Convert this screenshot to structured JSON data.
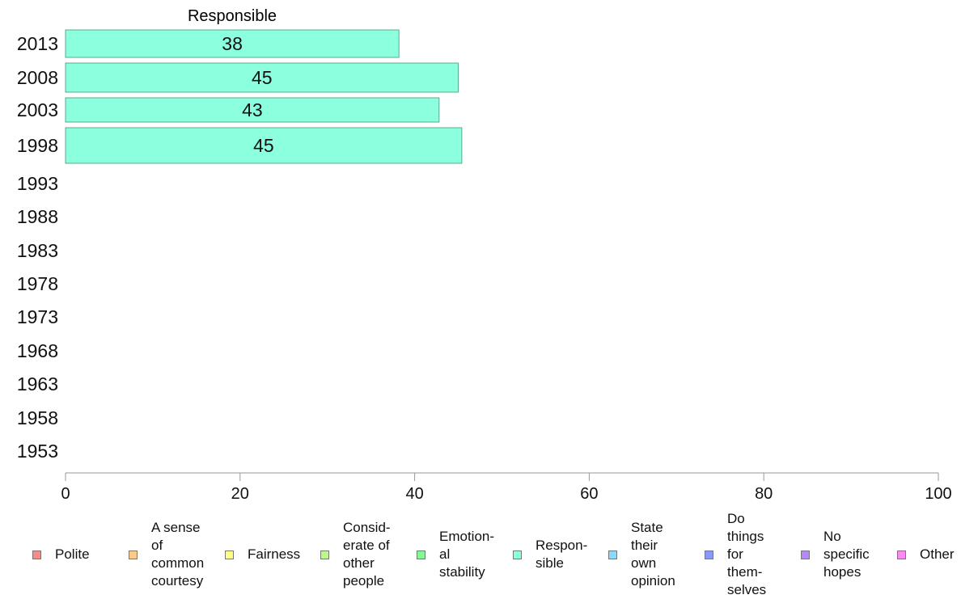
{
  "chart_data": {
    "type": "bar",
    "orientation": "horizontal",
    "title": "Responsible",
    "categories": [
      "2013",
      "2008",
      "2003",
      "1998",
      "1993",
      "1988",
      "1983",
      "1978",
      "1973",
      "1968",
      "1963",
      "1958",
      "1953"
    ],
    "series": [
      {
        "name": "Responsible",
        "color": "#8cffdf",
        "values": [
          38.2,
          45.0,
          42.8,
          45.4,
          null,
          null,
          null,
          null,
          null,
          null,
          null,
          null,
          null
        ]
      }
    ],
    "data_labels": [
      "38",
      "45",
      "43",
      "45",
      "",
      "",
      "",
      "",
      "",
      "",
      "",
      "",
      ""
    ],
    "xlim": [
      0,
      100
    ],
    "xticks": [
      "0",
      "20",
      "40",
      "60",
      "80",
      "100"
    ],
    "grid": false,
    "legend_position": "bottom"
  },
  "legend": {
    "items": [
      {
        "label": "Polite",
        "color": "#fa8a8a"
      },
      {
        "label": "A sense\nof\ncommon\ncourtesy",
        "color": "#fbc98a"
      },
      {
        "label": "Fairness",
        "color": "#fcfc8a"
      },
      {
        "label": "Consid-\nerate of\nother\npeople",
        "color": "#bafa88"
      },
      {
        "label": "Emotion-\nal\nstability",
        "color": "#88f596"
      },
      {
        "label": "Respon-\nsible",
        "color": "#8cffdf"
      },
      {
        "label": "State\ntheir\nown\nopinion",
        "color": "#8ad8fa"
      },
      {
        "label": "Do\nthings\nfor\nthem-\nselves",
        "color": "#8a98fa"
      },
      {
        "label": "No\nspecific\nhopes",
        "color": "#b38afa"
      },
      {
        "label": "Other",
        "color": "#fa8af5"
      }
    ]
  }
}
